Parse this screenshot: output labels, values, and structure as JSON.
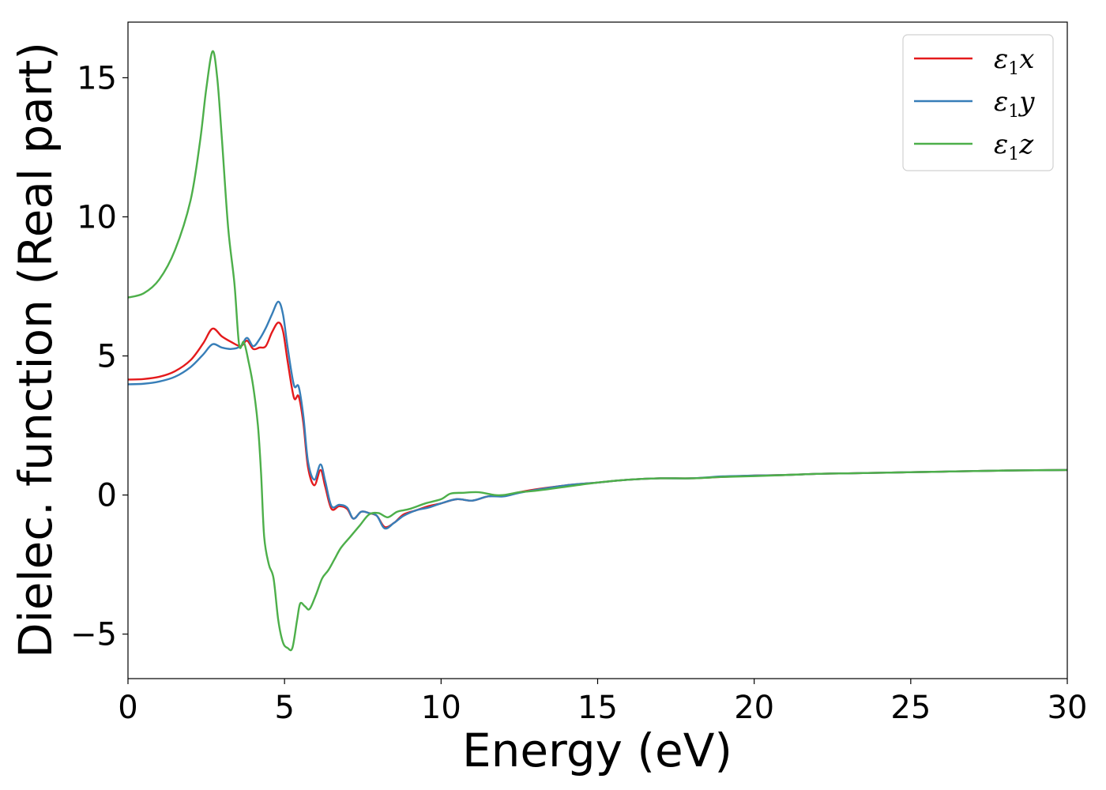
{
  "chart_data": {
    "type": "line",
    "title": "",
    "xlabel": "Energy (eV)",
    "ylabel": "Dielec. function (Real part)",
    "xlim": [
      0,
      30
    ],
    "ylim": [
      -6.6,
      17
    ],
    "xticks": [
      0,
      5,
      10,
      15,
      20,
      25,
      30
    ],
    "xtick_labels": [
      "0",
      "5",
      "10",
      "15",
      "20",
      "25",
      "30"
    ],
    "yticks": [
      -5,
      0,
      5,
      10,
      15
    ],
    "ytick_labels": [
      "−5",
      "0",
      "5",
      "10",
      "15"
    ],
    "grid": false,
    "legend": {
      "position": "top-right"
    },
    "series": [
      {
        "name": "ε1x",
        "legend_main": "ε",
        "legend_sub": "1",
        "legend_var": "x",
        "color": "#e41a1c",
        "points": [
          [
            0,
            4.15
          ],
          [
            0.5,
            4.17
          ],
          [
            1,
            4.25
          ],
          [
            1.5,
            4.45
          ],
          [
            2,
            4.85
          ],
          [
            2.4,
            5.45
          ],
          [
            2.7,
            5.98
          ],
          [
            3,
            5.7
          ],
          [
            3.3,
            5.5
          ],
          [
            3.6,
            5.35
          ],
          [
            3.8,
            5.55
          ],
          [
            4,
            5.25
          ],
          [
            4.2,
            5.3
          ],
          [
            4.4,
            5.35
          ],
          [
            4.6,
            5.85
          ],
          [
            4.8,
            6.2
          ],
          [
            4.95,
            5.9
          ],
          [
            5.1,
            4.8
          ],
          [
            5.3,
            3.5
          ],
          [
            5.45,
            3.55
          ],
          [
            5.6,
            2.6
          ],
          [
            5.75,
            1.0
          ],
          [
            5.95,
            0.35
          ],
          [
            6.15,
            0.9
          ],
          [
            6.3,
            0.3
          ],
          [
            6.5,
            -0.5
          ],
          [
            6.75,
            -0.4
          ],
          [
            7,
            -0.5
          ],
          [
            7.2,
            -0.85
          ],
          [
            7.45,
            -0.6
          ],
          [
            7.7,
            -0.65
          ],
          [
            7.95,
            -0.75
          ],
          [
            8.2,
            -1.15
          ],
          [
            8.5,
            -1.0
          ],
          [
            8.8,
            -0.7
          ],
          [
            9.2,
            -0.55
          ],
          [
            9.6,
            -0.4
          ],
          [
            10,
            -0.3
          ],
          [
            10.5,
            -0.15
          ],
          [
            11,
            -0.2
          ],
          [
            11.5,
            -0.05
          ],
          [
            12,
            -0.02
          ],
          [
            12.5,
            0.1
          ],
          [
            13,
            0.2
          ],
          [
            14,
            0.35
          ],
          [
            15,
            0.45
          ],
          [
            16,
            0.55
          ],
          [
            17,
            0.6
          ],
          [
            18,
            0.6
          ],
          [
            19,
            0.65
          ],
          [
            20,
            0.7
          ],
          [
            21,
            0.72
          ],
          [
            22,
            0.76
          ],
          [
            23,
            0.78
          ],
          [
            24,
            0.8
          ],
          [
            25,
            0.82
          ],
          [
            26,
            0.84
          ],
          [
            27,
            0.86
          ],
          [
            28,
            0.88
          ],
          [
            29,
            0.89
          ],
          [
            30,
            0.9
          ]
        ]
      },
      {
        "name": "ε1y",
        "legend_main": "ε",
        "legend_sub": "1",
        "legend_var": "y",
        "color": "#377eb8",
        "points": [
          [
            0,
            3.98
          ],
          [
            0.5,
            4.0
          ],
          [
            1,
            4.08
          ],
          [
            1.5,
            4.25
          ],
          [
            2,
            4.6
          ],
          [
            2.4,
            5.05
          ],
          [
            2.7,
            5.42
          ],
          [
            3,
            5.3
          ],
          [
            3.3,
            5.25
          ],
          [
            3.6,
            5.35
          ],
          [
            3.8,
            5.65
          ],
          [
            4,
            5.35
          ],
          [
            4.2,
            5.6
          ],
          [
            4.4,
            6.0
          ],
          [
            4.6,
            6.5
          ],
          [
            4.8,
            6.95
          ],
          [
            4.95,
            6.5
          ],
          [
            5.1,
            5.3
          ],
          [
            5.3,
            3.95
          ],
          [
            5.45,
            3.9
          ],
          [
            5.6,
            2.85
          ],
          [
            5.75,
            1.2
          ],
          [
            5.95,
            0.55
          ],
          [
            6.15,
            1.1
          ],
          [
            6.3,
            0.5
          ],
          [
            6.5,
            -0.4
          ],
          [
            6.75,
            -0.35
          ],
          [
            7,
            -0.45
          ],
          [
            7.2,
            -0.85
          ],
          [
            7.45,
            -0.6
          ],
          [
            7.7,
            -0.65
          ],
          [
            7.95,
            -0.75
          ],
          [
            8.2,
            -1.2
          ],
          [
            8.5,
            -1.0
          ],
          [
            8.8,
            -0.75
          ],
          [
            9.2,
            -0.55
          ],
          [
            9.6,
            -0.45
          ],
          [
            10,
            -0.3
          ],
          [
            10.5,
            -0.15
          ],
          [
            11,
            -0.2
          ],
          [
            11.5,
            -0.05
          ],
          [
            12,
            -0.05
          ],
          [
            12.5,
            0.08
          ],
          [
            13,
            0.18
          ],
          [
            14,
            0.35
          ],
          [
            15,
            0.45
          ],
          [
            16,
            0.55
          ],
          [
            17,
            0.6
          ],
          [
            18,
            0.6
          ],
          [
            19,
            0.67
          ],
          [
            20,
            0.7
          ],
          [
            21,
            0.72
          ],
          [
            22,
            0.76
          ],
          [
            23,
            0.78
          ],
          [
            24,
            0.8
          ],
          [
            25,
            0.82
          ],
          [
            26,
            0.84
          ],
          [
            27,
            0.86
          ],
          [
            28,
            0.88
          ],
          [
            29,
            0.89
          ],
          [
            30,
            0.9
          ]
        ]
      },
      {
        "name": "ε1z",
        "legend_main": "ε",
        "legend_sub": "1",
        "legend_var": "z",
        "color": "#4daf4a",
        "points": [
          [
            0,
            7.1
          ],
          [
            0.5,
            7.25
          ],
          [
            1,
            7.75
          ],
          [
            1.5,
            8.8
          ],
          [
            2,
            10.6
          ],
          [
            2.3,
            12.7
          ],
          [
            2.5,
            14.6
          ],
          [
            2.7,
            15.95
          ],
          [
            2.85,
            15.0
          ],
          [
            3,
            12.8
          ],
          [
            3.2,
            9.6
          ],
          [
            3.4,
            7.6
          ],
          [
            3.55,
            5.4
          ],
          [
            3.7,
            5.5
          ],
          [
            3.85,
            4.8
          ],
          [
            4,
            3.9
          ],
          [
            4.15,
            2.5
          ],
          [
            4.25,
            0.8
          ],
          [
            4.35,
            -1.5
          ],
          [
            4.5,
            -2.5
          ],
          [
            4.65,
            -3.0
          ],
          [
            4.8,
            -4.5
          ],
          [
            4.95,
            -5.3
          ],
          [
            5.1,
            -5.5
          ],
          [
            5.25,
            -5.5
          ],
          [
            5.4,
            -4.5
          ],
          [
            5.5,
            -3.9
          ],
          [
            5.65,
            -4.0
          ],
          [
            5.8,
            -4.1
          ],
          [
            6,
            -3.6
          ],
          [
            6.2,
            -3.0
          ],
          [
            6.4,
            -2.7
          ],
          [
            6.6,
            -2.3
          ],
          [
            6.8,
            -1.9
          ],
          [
            7.1,
            -1.5
          ],
          [
            7.4,
            -1.1
          ],
          [
            7.7,
            -0.7
          ],
          [
            8,
            -0.65
          ],
          [
            8.3,
            -0.8
          ],
          [
            8.6,
            -0.6
          ],
          [
            9,
            -0.5
          ],
          [
            9.5,
            -0.3
          ],
          [
            10,
            -0.15
          ],
          [
            10.3,
            0.05
          ],
          [
            10.7,
            0.08
          ],
          [
            11.2,
            0.1
          ],
          [
            11.7,
            0.0
          ],
          [
            12,
            0.0
          ],
          [
            12.5,
            0.1
          ],
          [
            13,
            0.15
          ],
          [
            14,
            0.3
          ],
          [
            15,
            0.45
          ],
          [
            16,
            0.55
          ],
          [
            17,
            0.6
          ],
          [
            18,
            0.6
          ],
          [
            19,
            0.65
          ],
          [
            20,
            0.68
          ],
          [
            21,
            0.72
          ],
          [
            22,
            0.76
          ],
          [
            23,
            0.78
          ],
          [
            24,
            0.8
          ],
          [
            25,
            0.82
          ],
          [
            26,
            0.84
          ],
          [
            27,
            0.86
          ],
          [
            28,
            0.88
          ],
          [
            29,
            0.89
          ],
          [
            30,
            0.9
          ]
        ]
      }
    ]
  }
}
